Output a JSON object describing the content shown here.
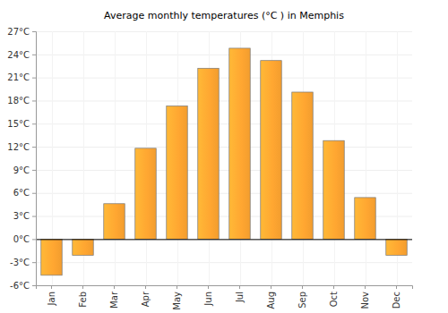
{
  "chart_data": {
    "type": "bar",
    "title": "Average monthly temperatures (°C ) in Memphis",
    "categories": [
      "Jan",
      "Feb",
      "Mar",
      "Apr",
      "May",
      "Jun",
      "Jul",
      "Aug",
      "Sep",
      "Oct",
      "Nov",
      "Dec"
    ],
    "values": [
      -4.7,
      -2.1,
      4.6,
      11.8,
      17.3,
      22.2,
      24.8,
      23.2,
      19.1,
      12.8,
      5.4,
      -2.1
    ],
    "color": "#ffa631",
    "ylim": [
      -6,
      27
    ],
    "yticks": [
      {
        "value": -6,
        "label": "-6°C"
      },
      {
        "value": -3,
        "label": "-3°C"
      },
      {
        "value": 0,
        "label": "0°C"
      },
      {
        "value": 3,
        "label": "3°C"
      },
      {
        "value": 6,
        "label": "6°C"
      },
      {
        "value": 9,
        "label": "9°C"
      },
      {
        "value": 12,
        "label": "12°C"
      },
      {
        "value": 15,
        "label": "15°C"
      },
      {
        "value": 18,
        "label": "18°C"
      },
      {
        "value": 21,
        "label": "21°C"
      },
      {
        "value": 24,
        "label": "24°C"
      },
      {
        "value": 27,
        "label": "27°C"
      }
    ],
    "grid": true
  }
}
